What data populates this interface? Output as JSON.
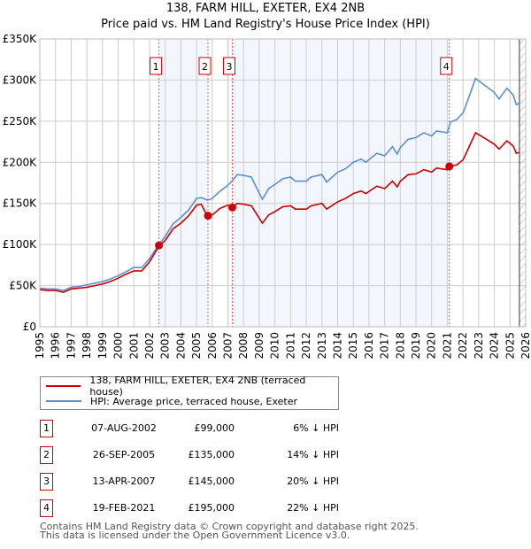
{
  "chart_data": {
    "type": "line",
    "title": "138, FARM HILL, EXETER, EX4 2NB",
    "subtitle": "Price paid vs. HM Land Registry's House Price Index (HPI)",
    "xlim": [
      1995,
      2026
    ],
    "ylim": [
      0,
      350000
    ],
    "y_ticks": [
      0,
      50000,
      100000,
      150000,
      200000,
      250000,
      300000,
      350000
    ],
    "y_tick_labels": [
      "£0",
      "£50K",
      "£100K",
      "£150K",
      "£200K",
      "£250K",
      "£300K",
      "£350K"
    ],
    "x_ticks": [
      "1995",
      "1996",
      "1997",
      "1998",
      "1999",
      "2000",
      "2001",
      "2002",
      "2003",
      "2004",
      "2005",
      "2006",
      "2007",
      "2008",
      "2009",
      "2010",
      "2011",
      "2012",
      "2013",
      "2014",
      "2015",
      "2016",
      "2017",
      "2018",
      "2019",
      "2020",
      "2021",
      "2022",
      "2023",
      "2024",
      "2025",
      "2026"
    ],
    "grid": true,
    "x": [
      1995.0,
      1995.5,
      1996.0,
      1996.5,
      1997.0,
      1997.5,
      1998.0,
      1998.5,
      1999.0,
      1999.5,
      2000.0,
      2000.5,
      2001.0,
      2001.5,
      2002.0,
      2002.6,
      2003.0,
      2003.5,
      2004.0,
      2004.5,
      2005.0,
      2005.3,
      2005.7,
      2006.0,
      2006.5,
      2007.0,
      2007.3,
      2007.6,
      2008.0,
      2008.5,
      2008.8,
      2009.2,
      2009.6,
      2010.0,
      2010.5,
      2011.0,
      2011.3,
      2012.0,
      2012.3,
      2013.0,
      2013.3,
      2014.0,
      2014.5,
      2015.0,
      2015.5,
      2015.8,
      2016.5,
      2017.0,
      2017.5,
      2017.8,
      2018.0,
      2018.5,
      2019.0,
      2019.5,
      2020.0,
      2020.3,
      2021.0,
      2021.2,
      2021.6,
      2022.0,
      2022.2,
      2022.8,
      2023.5,
      2024.0,
      2024.3,
      2024.8,
      2025.2,
      2025.4,
      2025.6
    ],
    "series": [
      {
        "name": "138, FARM HILL, EXETER, EX4 2NB (terraced house)",
        "color": "#cc0000",
        "values": [
          45000,
          44000,
          44000,
          42000,
          46000,
          47000,
          48000,
          50000,
          52000,
          55000,
          59000,
          64000,
          68000,
          68000,
          79000,
          98000,
          105000,
          119000,
          126000,
          135000,
          148000,
          149000,
          134000,
          136000,
          144000,
          148000,
          145000,
          150000,
          149000,
          147000,
          138000,
          126000,
          136000,
          140000,
          146000,
          147000,
          143000,
          143000,
          147000,
          150000,
          143000,
          152000,
          156000,
          162000,
          165000,
          162000,
          171000,
          168000,
          177000,
          170000,
          177000,
          185000,
          186000,
          191000,
          188000,
          193000,
          191000,
          195000,
          197000,
          203000,
          211000,
          236000,
          228000,
          222000,
          216000,
          226000,
          220000,
          211000,
          212000
        ]
      },
      {
        "name": "HPI: Average price, terraced house, Exeter",
        "color": "#5b8fd4",
        "values": [
          47000,
          46000,
          46000,
          44000,
          48000,
          49000,
          51000,
          53000,
          55000,
          58000,
          62000,
          67000,
          72000,
          72000,
          83000,
          100000,
          110000,
          125000,
          133000,
          142000,
          156000,
          157000,
          154000,
          156000,
          165000,
          172000,
          178000,
          185000,
          184000,
          182000,
          170000,
          155000,
          168000,
          173000,
          180000,
          182000,
          177000,
          177000,
          182000,
          185000,
          176000,
          188000,
          192000,
          200000,
          204000,
          200000,
          211000,
          208000,
          219000,
          210000,
          218000,
          228000,
          230000,
          236000,
          232000,
          238000,
          236000,
          249000,
          252000,
          260000,
          270000,
          302000,
          292000,
          285000,
          277000,
          290000,
          282000,
          270000,
          272000
        ]
      }
    ],
    "sales": [
      {
        "n": "1",
        "x": 2002.6,
        "value": 99000
      },
      {
        "n": "2",
        "x": 2005.73,
        "value": 135000
      },
      {
        "n": "3",
        "x": 2007.28,
        "value": 145000
      },
      {
        "n": "4",
        "x": 2021.13,
        "value": 195000
      }
    ],
    "shaded_periods": [
      [
        2002.6,
        2005.73
      ],
      [
        2007.28,
        2021.13
      ]
    ],
    "forecast_from": 2025.6,
    "legend_placement": "below"
  },
  "legend": {
    "items": [
      {
        "label": "138, FARM HILL, EXETER, EX4 2NB (terraced house)",
        "color": "#cc0000"
      },
      {
        "label": "HPI: Average price, terraced house, Exeter",
        "color": "#5b8fd4"
      }
    ]
  },
  "table": [
    {
      "n": "1",
      "date": "07-AUG-2002",
      "price": "£99,000",
      "hpi": "6% ↓ HPI"
    },
    {
      "n": "2",
      "date": "26-SEP-2005",
      "price": "£135,000",
      "hpi": "14% ↓ HPI"
    },
    {
      "n": "3",
      "date": "13-APR-2007",
      "price": "£145,000",
      "hpi": "20% ↓ HPI"
    },
    {
      "n": "4",
      "date": "19-FEB-2021",
      "price": "£195,000",
      "hpi": "22% ↓ HPI"
    }
  ],
  "footer": {
    "line1": "Contains HM Land Registry data © Crown copyright and database right 2025.",
    "line2": "This data is licensed under the Open Government Licence v3.0."
  }
}
